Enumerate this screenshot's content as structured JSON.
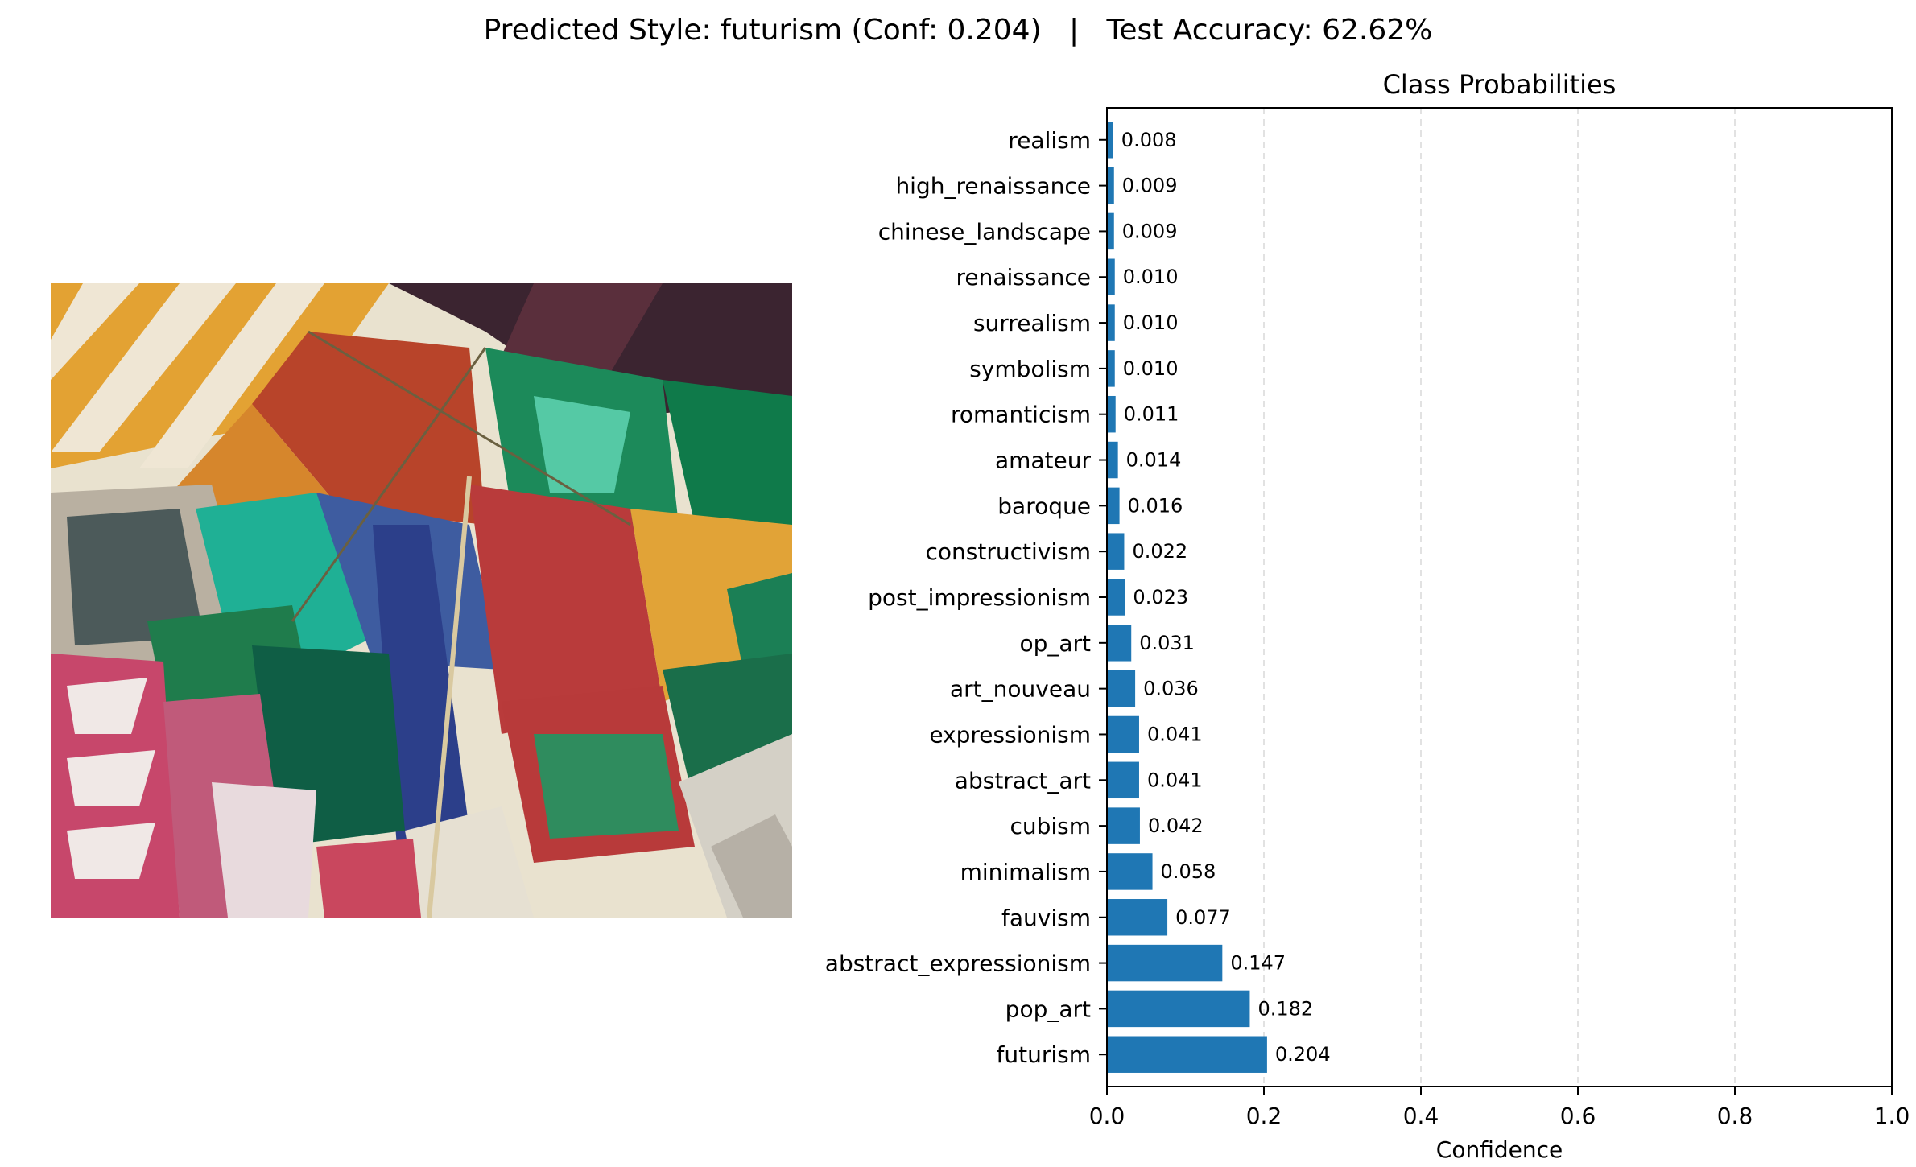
{
  "suptitle": {
    "predicted_label": "Predicted Style: futurism (Conf: 0.204)",
    "separator": "|",
    "accuracy_label": "Test Accuracy: 62.62%"
  },
  "colors": {
    "bar": "#1f77b4",
    "grid": "#d9d9d9",
    "axis": "#000000"
  },
  "chart_data": {
    "type": "bar",
    "orientation": "horizontal",
    "title": "Class Probabilities",
    "xlabel": "Confidence",
    "ylabel": "",
    "xlim": [
      0.0,
      1.0
    ],
    "xticks": [
      "0.0",
      "0.2",
      "0.4",
      "0.6",
      "0.8",
      "1.0"
    ],
    "grid": "x-axis dashed",
    "categories": [
      "futurism",
      "pop_art",
      "abstract_expressionism",
      "fauvism",
      "minimalism",
      "cubism",
      "abstract_art",
      "expressionism",
      "art_nouveau",
      "op_art",
      "post_impressionism",
      "constructivism",
      "baroque",
      "amateur",
      "romanticism",
      "symbolism",
      "surrealism",
      "renaissance",
      "chinese_landscape",
      "high_renaissance",
      "realism"
    ],
    "values": [
      0.204,
      0.182,
      0.147,
      0.077,
      0.058,
      0.042,
      0.041,
      0.041,
      0.036,
      0.031,
      0.023,
      0.022,
      0.016,
      0.014,
      0.011,
      0.01,
      0.01,
      0.01,
      0.009,
      0.009,
      0.008
    ],
    "value_labels": [
      "0.204",
      "0.182",
      "0.147",
      "0.077",
      "0.058",
      "0.042",
      "0.041",
      "0.041",
      "0.036",
      "0.031",
      "0.023",
      "0.022",
      "0.016",
      "0.014",
      "0.011",
      "0.010",
      "0.010",
      "0.010",
      "0.009",
      "0.009",
      "0.008"
    ]
  }
}
